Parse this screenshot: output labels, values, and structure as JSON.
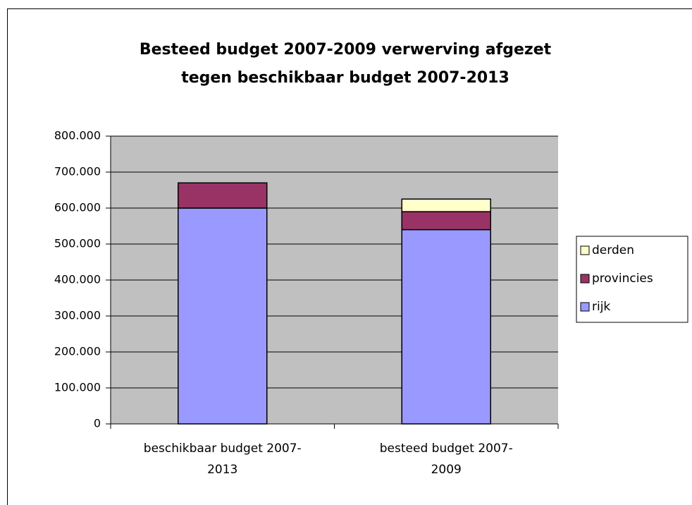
{
  "chart_data": {
    "type": "stacked-bar",
    "title": [
      "Besteed budget 2007-2009 verwerving afgezet",
      "tegen beschikbaar budget 2007-2013"
    ],
    "categories": [
      "beschikbaar budget 2007-2013",
      "besteed budget 2007-2009"
    ],
    "series": [
      {
        "name": "rijk",
        "color": "#9999ff",
        "values": [
          600000,
          540000
        ]
      },
      {
        "name": "provincies",
        "color": "#993366",
        "values": [
          70000,
          50000
        ]
      },
      {
        "name": "derden",
        "color": "#ffffcc",
        "values": [
          0,
          35000
        ]
      }
    ],
    "ylim": [
      0,
      800000
    ],
    "yticks": [
      0,
      {
        "value": 100000,
        "label": "100.000"
      },
      {
        "value": 200000,
        "label": "200.000"
      },
      {
        "value": 300000,
        "label": "300.000"
      },
      {
        "value": 400000,
        "label": "400.000"
      },
      {
        "value": 500000,
        "label": "500.000"
      },
      {
        "value": 600000,
        "label": "600.000"
      },
      {
        "value": 700000,
        "label": "700.000"
      },
      {
        "value": 800000,
        "label": "800.000"
      }
    ],
    "grid": true,
    "legend": "right",
    "plot_background": "#c0c0c0"
  }
}
